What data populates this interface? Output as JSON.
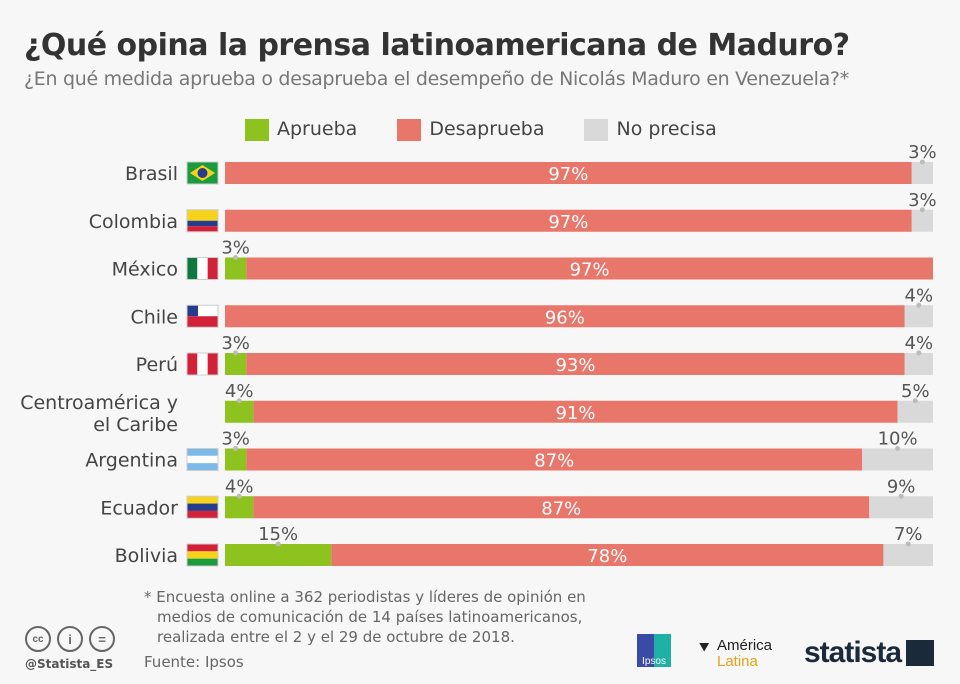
{
  "header": {
    "title": "¿Qué opina la prensa latinoamericana de Maduro?",
    "subtitle": "¿En qué medida aprueba o desaprueba el desempeño de Nicolás Maduro en Venezuela?*"
  },
  "chart_data": {
    "type": "bar",
    "stacked": true,
    "orientation": "horizontal",
    "categories": [
      "Brasil",
      "Colombia",
      "México",
      "Chile",
      "Perú",
      "Centroamérica y el Caribe",
      "Argentina",
      "Ecuador",
      "Bolivia"
    ],
    "series": [
      {
        "name": "Aprueba",
        "color": "#8dc21f",
        "values": [
          0,
          0,
          3,
          0,
          3,
          4,
          3,
          4,
          15
        ]
      },
      {
        "name": "Desaprueba",
        "color": "#e8766a",
        "values": [
          97,
          97,
          97,
          96,
          93,
          91,
          87,
          87,
          78
        ]
      },
      {
        "name": "No precisa",
        "color": "#d9d9d9",
        "values": [
          3,
          3,
          0,
          4,
          4,
          5,
          10,
          9,
          7
        ]
      }
    ],
    "legend": "top",
    "unit": "%",
    "xlim": [
      0,
      100
    ]
  },
  "footer": {
    "note": [
      "* Encuesta online a 362 periodistas y líderes de opinión en",
      "medios de comunicación de 14 países latinoamericanos,",
      "realizada entre el 2 y el 29 de octubre de 2018."
    ],
    "source": "Fuente: Ipsos",
    "handle": "@Statista_ES",
    "logos": {
      "ipsos": "Ipsos",
      "america_latina": [
        "América",
        "Latina"
      ],
      "statista": "statista"
    }
  }
}
